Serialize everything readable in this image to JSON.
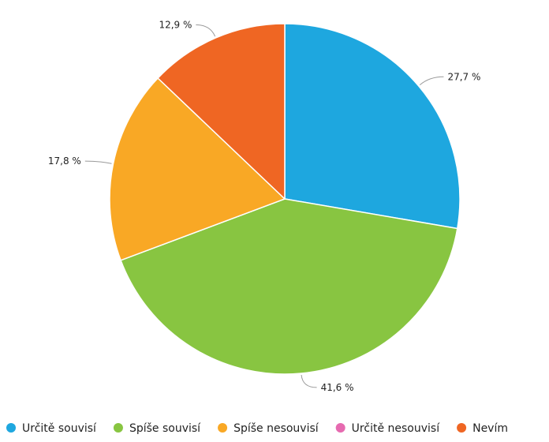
{
  "chart_data": {
    "type": "pie",
    "start_angle_deg": 0,
    "direction": "clockwise",
    "legend_position": "bottom",
    "slices": [
      {
        "label": "Určitě souvisí",
        "value": 27.7,
        "value_label": "27,7 %",
        "color": "#1ea7df"
      },
      {
        "label": "Spíše souvisí",
        "value": 41.6,
        "value_label": "41,6 %",
        "color": "#88c541"
      },
      {
        "label": "Spíše nesouvisí",
        "value": 17.8,
        "value_label": "17,8 %",
        "color": "#f9a825"
      },
      {
        "label": "Určitě nesouvisí",
        "value": 0,
        "value_label": "",
        "color": "#e66ab0"
      },
      {
        "label": "Nevím",
        "value": 12.9,
        "value_label": "12,9 %",
        "color": "#ef6623"
      }
    ]
  }
}
